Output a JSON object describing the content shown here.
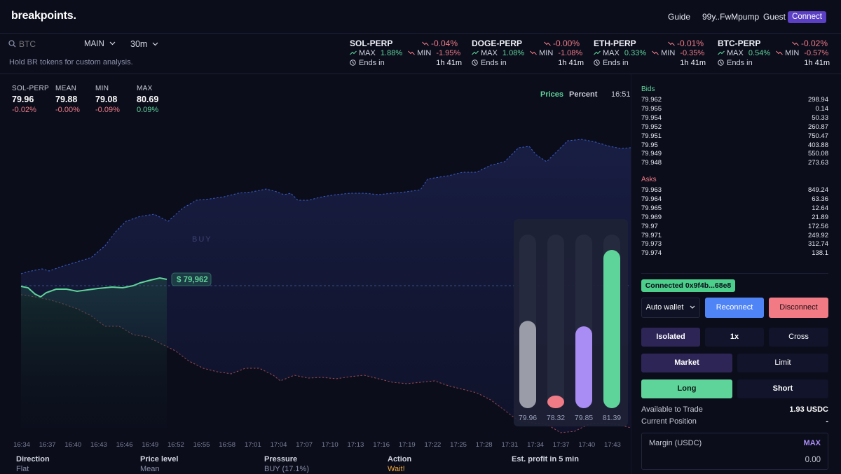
{
  "header": {
    "logo": "breakpoints.",
    "guide": "Guide",
    "wallet": "99y..FwMpump",
    "guest": "Guest",
    "connect": "Connect"
  },
  "subbar": {
    "search_placeholder": "BTC",
    "main_dropdown": "MAIN",
    "interval_dropdown": "30m",
    "hold_text": "Hold BR tokens for custom analysis."
  },
  "markets": [
    {
      "name": "SOL-PERP",
      "change": "-0.04%",
      "max_label": "MAX",
      "max": "1.88%",
      "min_label": "MIN",
      "min": "-1.95%",
      "ends_label": "Ends in",
      "ends": "1h 41m"
    },
    {
      "name": "DOGE-PERP",
      "change": "-0.00%",
      "max_label": "MAX",
      "max": "1.08%",
      "min_label": "MIN",
      "min": "-1.08%",
      "ends_label": "Ends in",
      "ends": "1h 41m"
    },
    {
      "name": "ETH-PERP",
      "change": "-0.01%",
      "max_label": "MAX",
      "max": "0.33%",
      "min_label": "MIN",
      "min": "-0.35%",
      "ends_label": "Ends in",
      "ends": "1h 41m"
    },
    {
      "name": "BTC-PERP",
      "change": "-0.02%",
      "max_label": "MAX",
      "max": "0.54%",
      "min_label": "MIN",
      "min": "-0.57%",
      "ends_label": "Ends in",
      "ends": "1h 41m"
    }
  ],
  "stats": [
    {
      "label": "SOL-PERP",
      "value": "79.96",
      "pct": "-0.02%",
      "color": "#ef7b86"
    },
    {
      "label": "MEAN",
      "value": "79.88",
      "pct": "-0.00%",
      "color": "#ef7b86"
    },
    {
      "label": "MIN",
      "value": "79.08",
      "pct": "-0.09%",
      "color": "#ef7b86"
    },
    {
      "label": "MAX",
      "value": "80.69",
      "pct": "0.09%",
      "color": "#5fd49a"
    }
  ],
  "chart_toggle": {
    "prices": "Prices",
    "percent": "Percent",
    "clock": "16:51"
  },
  "chart_data": {
    "type": "line",
    "title": "SOL-PERP",
    "price_label": "$ 79,962",
    "watermark": "BUY",
    "x": [
      "16:34",
      "16:37",
      "16:40",
      "16:43",
      "16:46",
      "16:49",
      "16:52",
      "16:55",
      "16:58",
      "17:01",
      "17:04",
      "17:07",
      "17:10",
      "17:13",
      "17:16",
      "17:19",
      "17:22",
      "17:25",
      "17:28",
      "17:31",
      "17:34",
      "17:37",
      "17:40",
      "17:43"
    ],
    "bars": [
      {
        "label": "79.96",
        "value": 79.96,
        "color": "#9a9ca8"
      },
      {
        "label": "78.32",
        "value": 78.32,
        "color": "#ef7b86"
      },
      {
        "label": "79.85",
        "value": 79.85,
        "color": "#a98cf4"
      },
      {
        "label": "81.39",
        "value": 81.39,
        "color": "#5fd49a"
      }
    ]
  },
  "orderbook": {
    "bids_title": "Bids",
    "bids": [
      {
        "price": "79.962",
        "size": "298.94"
      },
      {
        "price": "79.955",
        "size": "0.14"
      },
      {
        "price": "79.954",
        "size": "50.33"
      },
      {
        "price": "79.952",
        "size": "260.87"
      },
      {
        "price": "79.951",
        "size": "750.47"
      },
      {
        "price": "79.95",
        "size": "403.88"
      },
      {
        "price": "79.949",
        "size": "550.08"
      },
      {
        "price": "79.948",
        "size": "273.63"
      }
    ],
    "asks_title": "Asks",
    "asks": [
      {
        "price": "79.963",
        "size": "849.24"
      },
      {
        "price": "79.964",
        "size": "63.36"
      },
      {
        "price": "79.965",
        "size": "12.64"
      },
      {
        "price": "79.969",
        "size": "21.89"
      },
      {
        "price": "79.97",
        "size": "172.56"
      },
      {
        "price": "79.971",
        "size": "249.92"
      },
      {
        "price": "79.973",
        "size": "312.74"
      },
      {
        "price": "79.974",
        "size": "138.1"
      }
    ]
  },
  "trade": {
    "connected": "Connected 0x9f4b...68e8",
    "auto_wallet": "Auto wallet",
    "reconnect": "Reconnect",
    "disconnect": "Disconnect",
    "isolated": "Isolated",
    "leverage": "1x",
    "cross": "Cross",
    "market": "Market",
    "limit": "Limit",
    "long": "Long",
    "short": "Short",
    "available_label": "Available to Trade",
    "available_value": "1.93 USDC",
    "position_label": "Current Position",
    "position_value": "-",
    "margin_label": "Margin (USDC)",
    "margin_max": "MAX",
    "margin_value": "0.00"
  },
  "bottom": [
    {
      "label": "Direction",
      "value": "Flat",
      "color": "#8b90a8"
    },
    {
      "label": "Price level",
      "value": "Mean",
      "color": "#8b90a8"
    },
    {
      "label": "Pressure",
      "value": "BUY (17.1%)",
      "color": "#8b90a8"
    },
    {
      "label": "Action",
      "value": "Wait!",
      "color": "#f2a93b"
    },
    {
      "label": "Est. profit in 5 min",
      "value": "",
      "color": "#8b90a8"
    }
  ]
}
